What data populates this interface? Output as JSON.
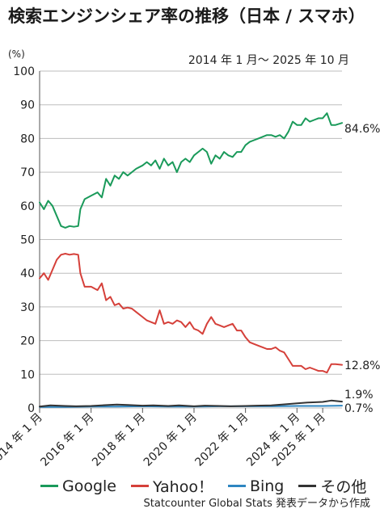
{
  "title": "検索エンジンシェア率の推移（日本 / スマホ）",
  "subtitle": "2014 年 1 月〜 2025 年 10 月",
  "unit": "(%)",
  "source": "Statcounter Global Stats 発表データから作成",
  "chart_data": {
    "type": "line",
    "xlabel": "",
    "ylabel": "(%)",
    "ylim": [
      0,
      100
    ],
    "yticks": [
      0,
      10,
      20,
      30,
      40,
      50,
      60,
      70,
      80,
      90,
      100
    ],
    "x_tick_labels": [
      "2014 年 1 月",
      "2016 年 1 月",
      "2018 年 1 月",
      "2020 年 1 月",
      "2022 年 1 月",
      "2024 年 1 月",
      "2025 年 1 月"
    ],
    "x_tick_years": [
      2014,
      2016,
      2018,
      2020,
      2022,
      2024,
      2025
    ],
    "x_range": [
      "2014-01",
      "2025-10"
    ],
    "grid": "horizontal",
    "legend_position": "bottom",
    "series": [
      {
        "name": "Google",
        "color": "#1a9a5a",
        "end_label": "84.6%",
        "points": [
          [
            "2014-01",
            61
          ],
          [
            "2014-03",
            59
          ],
          [
            "2014-05",
            61.5
          ],
          [
            "2014-07",
            60
          ],
          [
            "2014-09",
            57
          ],
          [
            "2014-11",
            54
          ],
          [
            "2015-01",
            53.5
          ],
          [
            "2015-03",
            54
          ],
          [
            "2015-05",
            53.8
          ],
          [
            "2015-07",
            54
          ],
          [
            "2015-08",
            59
          ],
          [
            "2015-10",
            62
          ],
          [
            "2016-01",
            63
          ],
          [
            "2016-04",
            64
          ],
          [
            "2016-06",
            62.5
          ],
          [
            "2016-08",
            68
          ],
          [
            "2016-10",
            66
          ],
          [
            "2016-12",
            69
          ],
          [
            "2017-02",
            68
          ],
          [
            "2017-04",
            70
          ],
          [
            "2017-06",
            69
          ],
          [
            "2017-08",
            70
          ],
          [
            "2017-10",
            71
          ],
          [
            "2018-01",
            72
          ],
          [
            "2018-03",
            73
          ],
          [
            "2018-05",
            72
          ],
          [
            "2018-07",
            73.5
          ],
          [
            "2018-09",
            71
          ],
          [
            "2018-11",
            74
          ],
          [
            "2019-01",
            72
          ],
          [
            "2019-03",
            73
          ],
          [
            "2019-05",
            70
          ],
          [
            "2019-07",
            73
          ],
          [
            "2019-09",
            74
          ],
          [
            "2019-11",
            73
          ],
          [
            "2020-01",
            75
          ],
          [
            "2020-03",
            76
          ],
          [
            "2020-05",
            77
          ],
          [
            "2020-07",
            76
          ],
          [
            "2020-09",
            72.5
          ],
          [
            "2020-11",
            75
          ],
          [
            "2021-01",
            74
          ],
          [
            "2021-03",
            76
          ],
          [
            "2021-05",
            75
          ],
          [
            "2021-07",
            74.5
          ],
          [
            "2021-09",
            76
          ],
          [
            "2021-11",
            76
          ],
          [
            "2022-01",
            78
          ],
          [
            "2022-03",
            79
          ],
          [
            "2022-05",
            79.5
          ],
          [
            "2022-07",
            80
          ],
          [
            "2022-09",
            80.5
          ],
          [
            "2022-11",
            81
          ],
          [
            "2023-01",
            81
          ],
          [
            "2023-03",
            80.5
          ],
          [
            "2023-05",
            81
          ],
          [
            "2023-07",
            80
          ],
          [
            "2023-09",
            82
          ],
          [
            "2023-11",
            85
          ],
          [
            "2024-01",
            84
          ],
          [
            "2024-03",
            84
          ],
          [
            "2024-05",
            86
          ],
          [
            "2024-07",
            85
          ],
          [
            "2024-09",
            85.5
          ],
          [
            "2024-11",
            86
          ],
          [
            "2025-01",
            86
          ],
          [
            "2025-03",
            87.5
          ],
          [
            "2025-05",
            84
          ],
          [
            "2025-07",
            84
          ],
          [
            "2025-10",
            84.6
          ]
        ]
      },
      {
        "name": "Yahoo！",
        "color": "#d5403a",
        "end_label": "12.8%",
        "points": [
          [
            "2014-01",
            38.5
          ],
          [
            "2014-03",
            40
          ],
          [
            "2014-05",
            38
          ],
          [
            "2014-07",
            41
          ],
          [
            "2014-09",
            44
          ],
          [
            "2014-11",
            45.5
          ],
          [
            "2015-01",
            45.8
          ],
          [
            "2015-03",
            45.5
          ],
          [
            "2015-05",
            45.7
          ],
          [
            "2015-07",
            45.5
          ],
          [
            "2015-08",
            40
          ],
          [
            "2015-10",
            36
          ],
          [
            "2016-01",
            36
          ],
          [
            "2016-04",
            35
          ],
          [
            "2016-06",
            37
          ],
          [
            "2016-08",
            32
          ],
          [
            "2016-10",
            33
          ],
          [
            "2016-12",
            30.5
          ],
          [
            "2017-02",
            31
          ],
          [
            "2017-04",
            29.5
          ],
          [
            "2017-06",
            29.8
          ],
          [
            "2017-08",
            29.5
          ],
          [
            "2017-10",
            28.5
          ],
          [
            "2018-01",
            27
          ],
          [
            "2018-03",
            26
          ],
          [
            "2018-05",
            25.5
          ],
          [
            "2018-07",
            25
          ],
          [
            "2018-09",
            29
          ],
          [
            "2018-11",
            25
          ],
          [
            "2019-01",
            25.5
          ],
          [
            "2019-03",
            25
          ],
          [
            "2019-05",
            26
          ],
          [
            "2019-07",
            25.5
          ],
          [
            "2019-09",
            24
          ],
          [
            "2019-11",
            25.5
          ],
          [
            "2020-01",
            23.5
          ],
          [
            "2020-03",
            23
          ],
          [
            "2020-05",
            22
          ],
          [
            "2020-07",
            25
          ],
          [
            "2020-09",
            27
          ],
          [
            "2020-11",
            25
          ],
          [
            "2021-01",
            24.5
          ],
          [
            "2021-03",
            24
          ],
          [
            "2021-05",
            24.5
          ],
          [
            "2021-07",
            25
          ],
          [
            "2021-09",
            23
          ],
          [
            "2021-11",
            23
          ],
          [
            "2022-01",
            21
          ],
          [
            "2022-03",
            19.5
          ],
          [
            "2022-05",
            19
          ],
          [
            "2022-07",
            18.5
          ],
          [
            "2022-09",
            18
          ],
          [
            "2022-11",
            17.5
          ],
          [
            "2023-01",
            17.5
          ],
          [
            "2023-03",
            18
          ],
          [
            "2023-05",
            17
          ],
          [
            "2023-07",
            16.5
          ],
          [
            "2023-09",
            14.5
          ],
          [
            "2023-11",
            12.5
          ],
          [
            "2024-01",
            12.5
          ],
          [
            "2024-03",
            12.5
          ],
          [
            "2024-05",
            11.5
          ],
          [
            "2024-07",
            12
          ],
          [
            "2024-09",
            11.5
          ],
          [
            "2024-11",
            11
          ],
          [
            "2025-01",
            11
          ],
          [
            "2025-03",
            10.5
          ],
          [
            "2025-05",
            13
          ],
          [
            "2025-07",
            13
          ],
          [
            "2025-10",
            12.8
          ]
        ]
      },
      {
        "name": "Bing",
        "color": "#2e86c1",
        "end_label": "0.7%",
        "points": [
          [
            "2014-01",
            0.3
          ],
          [
            "2015-01",
            0.3
          ],
          [
            "2016-01",
            0.4
          ],
          [
            "2017-01",
            0.4
          ],
          [
            "2018-01",
            0.5
          ],
          [
            "2019-01",
            0.4
          ],
          [
            "2020-01",
            0.4
          ],
          [
            "2021-01",
            0.5
          ],
          [
            "2022-01",
            0.5
          ],
          [
            "2023-01",
            0.5
          ],
          [
            "2024-01",
            0.6
          ],
          [
            "2025-01",
            0.6
          ],
          [
            "2025-10",
            0.7
          ]
        ]
      },
      {
        "name": "その他",
        "color": "#333333",
        "end_label": "1.9%",
        "points": [
          [
            "2014-01",
            0.4
          ],
          [
            "2014-06",
            0.8
          ],
          [
            "2015-01",
            0.6
          ],
          [
            "2015-06",
            0.5
          ],
          [
            "2016-01",
            0.6
          ],
          [
            "2016-06",
            0.8
          ],
          [
            "2017-01",
            1
          ],
          [
            "2017-06",
            0.9
          ],
          [
            "2018-01",
            0.7
          ],
          [
            "2018-06",
            0.8
          ],
          [
            "2019-01",
            0.6
          ],
          [
            "2019-06",
            0.8
          ],
          [
            "2020-01",
            0.5
          ],
          [
            "2020-06",
            0.7
          ],
          [
            "2021-01",
            0.6
          ],
          [
            "2021-06",
            0.5
          ],
          [
            "2022-01",
            0.6
          ],
          [
            "2022-06",
            0.7
          ],
          [
            "2023-01",
            0.8
          ],
          [
            "2023-06",
            1
          ],
          [
            "2024-01",
            1.4
          ],
          [
            "2024-06",
            1.6
          ],
          [
            "2025-01",
            1.8
          ],
          [
            "2025-05",
            2.2
          ],
          [
            "2025-10",
            1.9
          ]
        ]
      }
    ]
  }
}
